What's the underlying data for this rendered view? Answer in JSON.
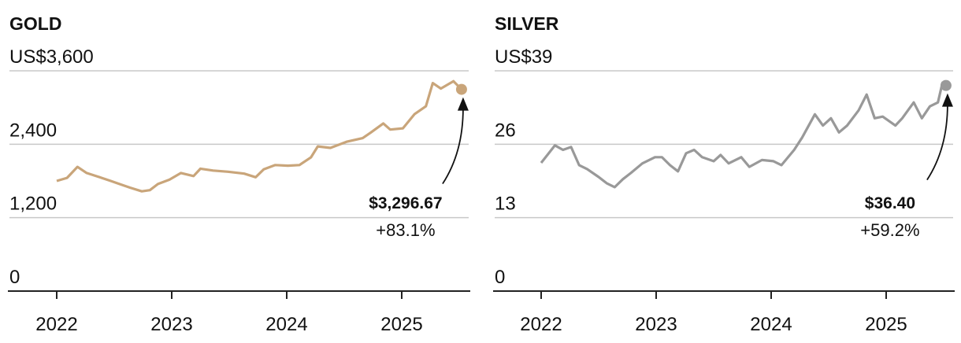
{
  "chart_data": [
    {
      "type": "line",
      "title": "GOLD",
      "unit_prefix": "US$",
      "yticks": [
        "US$3,600",
        "2,400",
        "1,200",
        "0"
      ],
      "ytick_values": [
        3600,
        2400,
        1200,
        0
      ],
      "ylim": [
        0,
        3600
      ],
      "xticks": [
        "2022",
        "2023",
        "2024",
        "2025"
      ],
      "xlim": [
        2021.6,
        2025.6
      ],
      "grid": true,
      "color": "#c9a57a",
      "annotation": {
        "value": "$3,296.67",
        "change": "+83.1%"
      },
      "series": [
        {
          "name": "Gold",
          "x": [
            2022.0,
            2022.09,
            2022.18,
            2022.26,
            2022.36,
            2022.47,
            2022.57,
            2022.64,
            2022.74,
            2022.81,
            2022.88,
            2022.98,
            2023.08,
            2023.19,
            2023.25,
            2023.36,
            2023.49,
            2023.63,
            2023.73,
            2023.8,
            2023.9,
            2024.01,
            2024.11,
            2024.21,
            2024.27,
            2024.38,
            2024.52,
            2024.66,
            2024.73,
            2024.84,
            2024.9,
            2025.01,
            2025.11,
            2025.21,
            2025.27,
            2025.34,
            2025.45,
            2025.52
          ],
          "y": [
            1800,
            1850,
            2030,
            1930,
            1870,
            1800,
            1735,
            1690,
            1630,
            1650,
            1750,
            1820,
            1930,
            1880,
            2000,
            1970,
            1950,
            1920,
            1860,
            1990,
            2060,
            2050,
            2060,
            2185,
            2365,
            2340,
            2440,
            2500,
            2590,
            2740,
            2640,
            2660,
            2890,
            3020,
            3400,
            3310,
            3430,
            3297
          ]
        }
      ]
    },
    {
      "type": "line",
      "title": "SILVER",
      "unit_prefix": "US$",
      "yticks": [
        "US$39",
        "26",
        "13",
        "0"
      ],
      "ytick_values": [
        39,
        26,
        13,
        0
      ],
      "ylim": [
        0,
        39
      ],
      "xticks": [
        "2022",
        "2023",
        "2024",
        "2025"
      ],
      "xlim": [
        2021.6,
        2025.6
      ],
      "grid": true,
      "color": "#999999",
      "annotation": {
        "value": "$36.40",
        "change": "+59.2%"
      },
      "series": [
        {
          "name": "Silver",
          "x": [
            2022.0,
            2022.05,
            2022.12,
            2022.19,
            2022.26,
            2022.33,
            2022.4,
            2022.5,
            2022.57,
            2022.64,
            2022.71,
            2022.78,
            2022.88,
            2022.99,
            2023.05,
            2023.12,
            2023.19,
            2023.26,
            2023.33,
            2023.4,
            2023.5,
            2023.56,
            2023.63,
            2023.74,
            2023.81,
            2023.92,
            2024.02,
            2024.09,
            2024.2,
            2024.27,
            2024.38,
            2024.45,
            2024.52,
            2024.59,
            2024.66,
            2024.76,
            2024.83,
            2024.9,
            2024.97,
            2025.08,
            2025.14,
            2025.24,
            2025.31,
            2025.38,
            2025.45,
            2025.49,
            2025.52
          ],
          "y": [
            22.7,
            24.0,
            25.8,
            25.0,
            25.5,
            22.3,
            21.6,
            20.2,
            19.1,
            18.4,
            19.8,
            20.9,
            22.6,
            23.7,
            23.7,
            22.3,
            21.2,
            24.4,
            25.0,
            23.7,
            23.0,
            24.1,
            22.6,
            23.7,
            22.0,
            23.2,
            23.0,
            22.3,
            25.0,
            27.2,
            31.3,
            29.3,
            30.6,
            28.1,
            29.3,
            32.0,
            34.8,
            30.6,
            30.9,
            29.3,
            30.6,
            33.4,
            30.6,
            32.7,
            33.4,
            36.9,
            36.4
          ]
        }
      ]
    }
  ]
}
